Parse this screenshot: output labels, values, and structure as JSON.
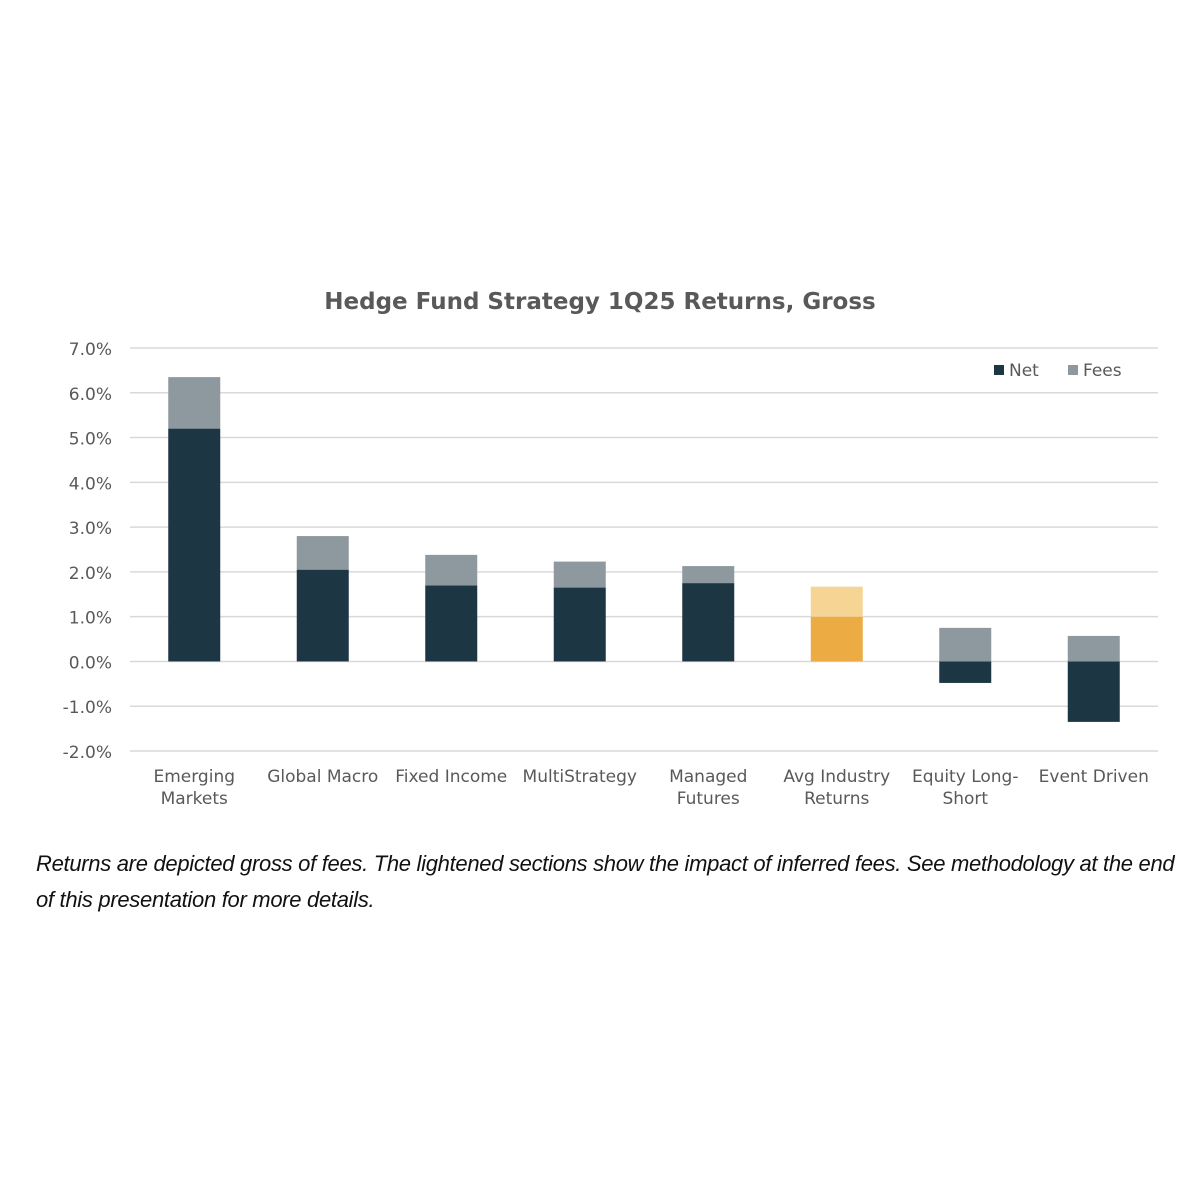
{
  "chart_data": {
    "type": "bar",
    "title": "Hedge Fund Strategy 1Q25 Returns, Gross",
    "xlabel": "",
    "ylabel": "",
    "ylim": [
      -2.0,
      7.0
    ],
    "y_ticks": [
      "-2.0%",
      "-1.0%",
      "0.0%",
      "1.0%",
      "2.0%",
      "3.0%",
      "4.0%",
      "5.0%",
      "6.0%",
      "7.0%"
    ],
    "grid": true,
    "legend_position": "top-right",
    "stacked": true,
    "categories": [
      [
        "Emerging",
        "Markets"
      ],
      [
        "Global Macro"
      ],
      [
        "Fixed Income"
      ],
      [
        "MultiStrategy"
      ],
      [
        "Managed",
        "Futures"
      ],
      [
        "Avg Industry",
        "Returns"
      ],
      [
        "Equity Long-",
        "Short"
      ],
      [
        "Event Driven"
      ]
    ],
    "series": [
      {
        "name": "Net",
        "values": [
          5.2,
          2.05,
          1.7,
          1.65,
          1.75,
          1.0,
          -0.48,
          -1.35
        ]
      },
      {
        "name": "Fees",
        "values": [
          1.15,
          0.75,
          0.68,
          0.58,
          0.38,
          0.67,
          0.75,
          0.57
        ]
      }
    ],
    "colors": {
      "net": "#1d3644",
      "fees": "#8e999f",
      "highlight_net": "#ecac43",
      "highlight_fees": "#f6d594",
      "grid": "#d9d9d9",
      "text": "#595959"
    },
    "highlight_category_index": 5
  },
  "caption": "Returns are depicted gross of fees.  The lightened sections show the impact of inferred fees.  See methodology at the end of this presentation for more details."
}
